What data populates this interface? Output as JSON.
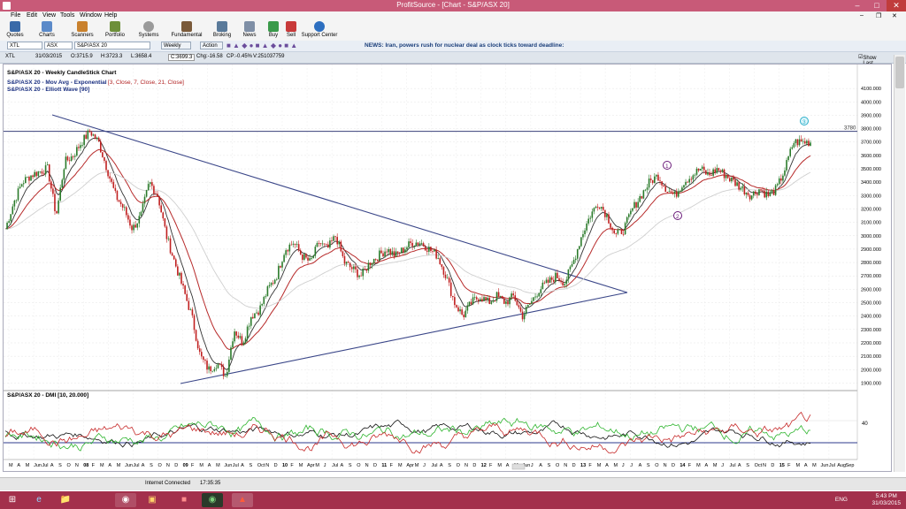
{
  "window": {
    "title": "ProfitSource - [Chart - S&P/ASX 20]"
  },
  "menu": [
    "File",
    "Edit",
    "View",
    "Tools",
    "Window",
    "Help"
  ],
  "toolbar": [
    "Quotes",
    "Charts",
    "Scanners",
    "Portfolio",
    "Systems",
    "Fundamental",
    "Broking",
    "News",
    "Buy",
    "Sell",
    "Support Center"
  ],
  "symbolbar": {
    "symbol": "XTL",
    "exchange": "ASX",
    "name": "S&P/ASX 20",
    "period": "Weekly",
    "action": "Action",
    "news": "NEWS: Iran, powers rush for nuclear deal as clock ticks toward deadline:"
  },
  "quote": {
    "symbol": "XTL",
    "date": "31/03/2015",
    "open": "O:3715.9",
    "high": "H:3723.3",
    "low": "L:3658.4",
    "close": "C:3699.3",
    "chg": "Chg:-16.58",
    "cp": "CP:-0.45%",
    "volume": "V:251037759",
    "show_last": "Show Last"
  },
  "chart_data": [
    {
      "type": "candlestick",
      "title": "S&P/ASX 20 - Weekly CandleStick Chart",
      "indicators": [
        "S&P/ASX 20 - Mov Avg - Exponential",
        "S&P/ASX 20 - Elliott Wave [90]"
      ],
      "mov_avg_params": "[3, Close, 7, Close, 21, Close]",
      "ylim": [
        1850,
        4200
      ],
      "y_ticks": [
        "1900.000",
        "2000.000",
        "2100.000",
        "2200.000",
        "2300.000",
        "2400.000",
        "2500.000",
        "2600.000",
        "2700.000",
        "2800.000",
        "2900.000",
        "3000.000",
        "3100.000",
        "3200.000",
        "3300.000",
        "3400.000",
        "3500.000",
        "3600.000",
        "3700.000",
        "3800.000",
        "3900.000",
        "4000.000",
        "4100.000"
      ],
      "y_tick_values": [
        1900,
        2000,
        2100,
        2200,
        2300,
        2400,
        2500,
        2600,
        2700,
        2800,
        2900,
        3000,
        3100,
        3200,
        3300,
        3400,
        3500,
        3600,
        3700,
        3800,
        3900,
        4000,
        4100
      ],
      "horizontal_line": {
        "value": 3780,
        "label": "3780"
      },
      "wave_labels": [
        "1",
        "2",
        "3"
      ],
      "series": [
        {
          "name": "weekly_close_approx",
          "values": [
            3050,
            3250,
            3400,
            3450,
            3480,
            3500,
            3150,
            3550,
            3600,
            3700,
            3780,
            3700,
            3500,
            3300,
            3200,
            3050,
            3150,
            3400,
            3300,
            3000,
            2800,
            2600,
            2400,
            2100,
            2000,
            2050,
            1950,
            2300,
            2200,
            2400,
            2450,
            2600,
            2700,
            2900,
            2950,
            2850,
            2800,
            2950,
            2900,
            3000,
            2800,
            2750,
            2700,
            2800,
            2850,
            2900,
            2850,
            2900,
            2950,
            2950,
            2900,
            2850,
            2700,
            2500,
            2400,
            2500,
            2550,
            2500,
            2550,
            2500,
            2550,
            2400,
            2500,
            2600,
            2650,
            2700,
            2650,
            2800,
            3000,
            3150,
            3250,
            3150,
            3000,
            3050,
            3200,
            3300,
            3400,
            3450,
            3350,
            3300,
            3400,
            3450,
            3500,
            3450,
            3500,
            3450,
            3400,
            3350,
            3300,
            3350,
            3300,
            3350,
            3500,
            3700,
            3700,
            3700
          ]
        }
      ]
    },
    {
      "type": "line",
      "title": "S&P/ASX 20 - DMI [10, 20.000]",
      "y_ticks": [
        "40"
      ],
      "y_tick_values": [
        40
      ],
      "ylim": [
        0,
        60
      ]
    }
  ],
  "x_axis_labels": [
    "M",
    "A",
    "M",
    "Jun",
    "Jul",
    "A",
    "S",
    "O",
    "N",
    "08",
    "F",
    "M",
    "A",
    "M",
    "Jun",
    "Jul",
    "A",
    "S",
    "O",
    "N",
    "D",
    "09",
    "F",
    "M",
    "A",
    "M",
    "Jun",
    "Jul",
    "A",
    "S",
    "Oct",
    "N",
    "D",
    "10",
    "F",
    "M",
    "Apr",
    "M",
    "J",
    "Jul",
    "A",
    "S",
    "O",
    "N",
    "D",
    "11",
    "F",
    "M",
    "Apr",
    "M",
    "J",
    "Jul",
    "A",
    "S",
    "O",
    "N",
    "D",
    "12",
    "F",
    "M",
    "A",
    "M",
    "Jun",
    "J",
    "A",
    "S",
    "O",
    "N",
    "D",
    "13",
    "F",
    "M",
    "A",
    "M",
    "J",
    "J",
    "A",
    "S",
    "O",
    "N",
    "D",
    "14",
    "F",
    "M",
    "A",
    "M",
    "J",
    "Jul",
    "A",
    "S",
    "Oct",
    "N",
    "D",
    "15",
    "F",
    "M",
    "A",
    "M",
    "Jun",
    "Jul",
    "Aug",
    "Sep"
  ],
  "status": {
    "connection": "Internet Connected",
    "time": "17:35:35"
  },
  "taskbar": {
    "lang": "ENG",
    "clock_time": "5:43 PM",
    "clock_date": "31/03/2015"
  }
}
